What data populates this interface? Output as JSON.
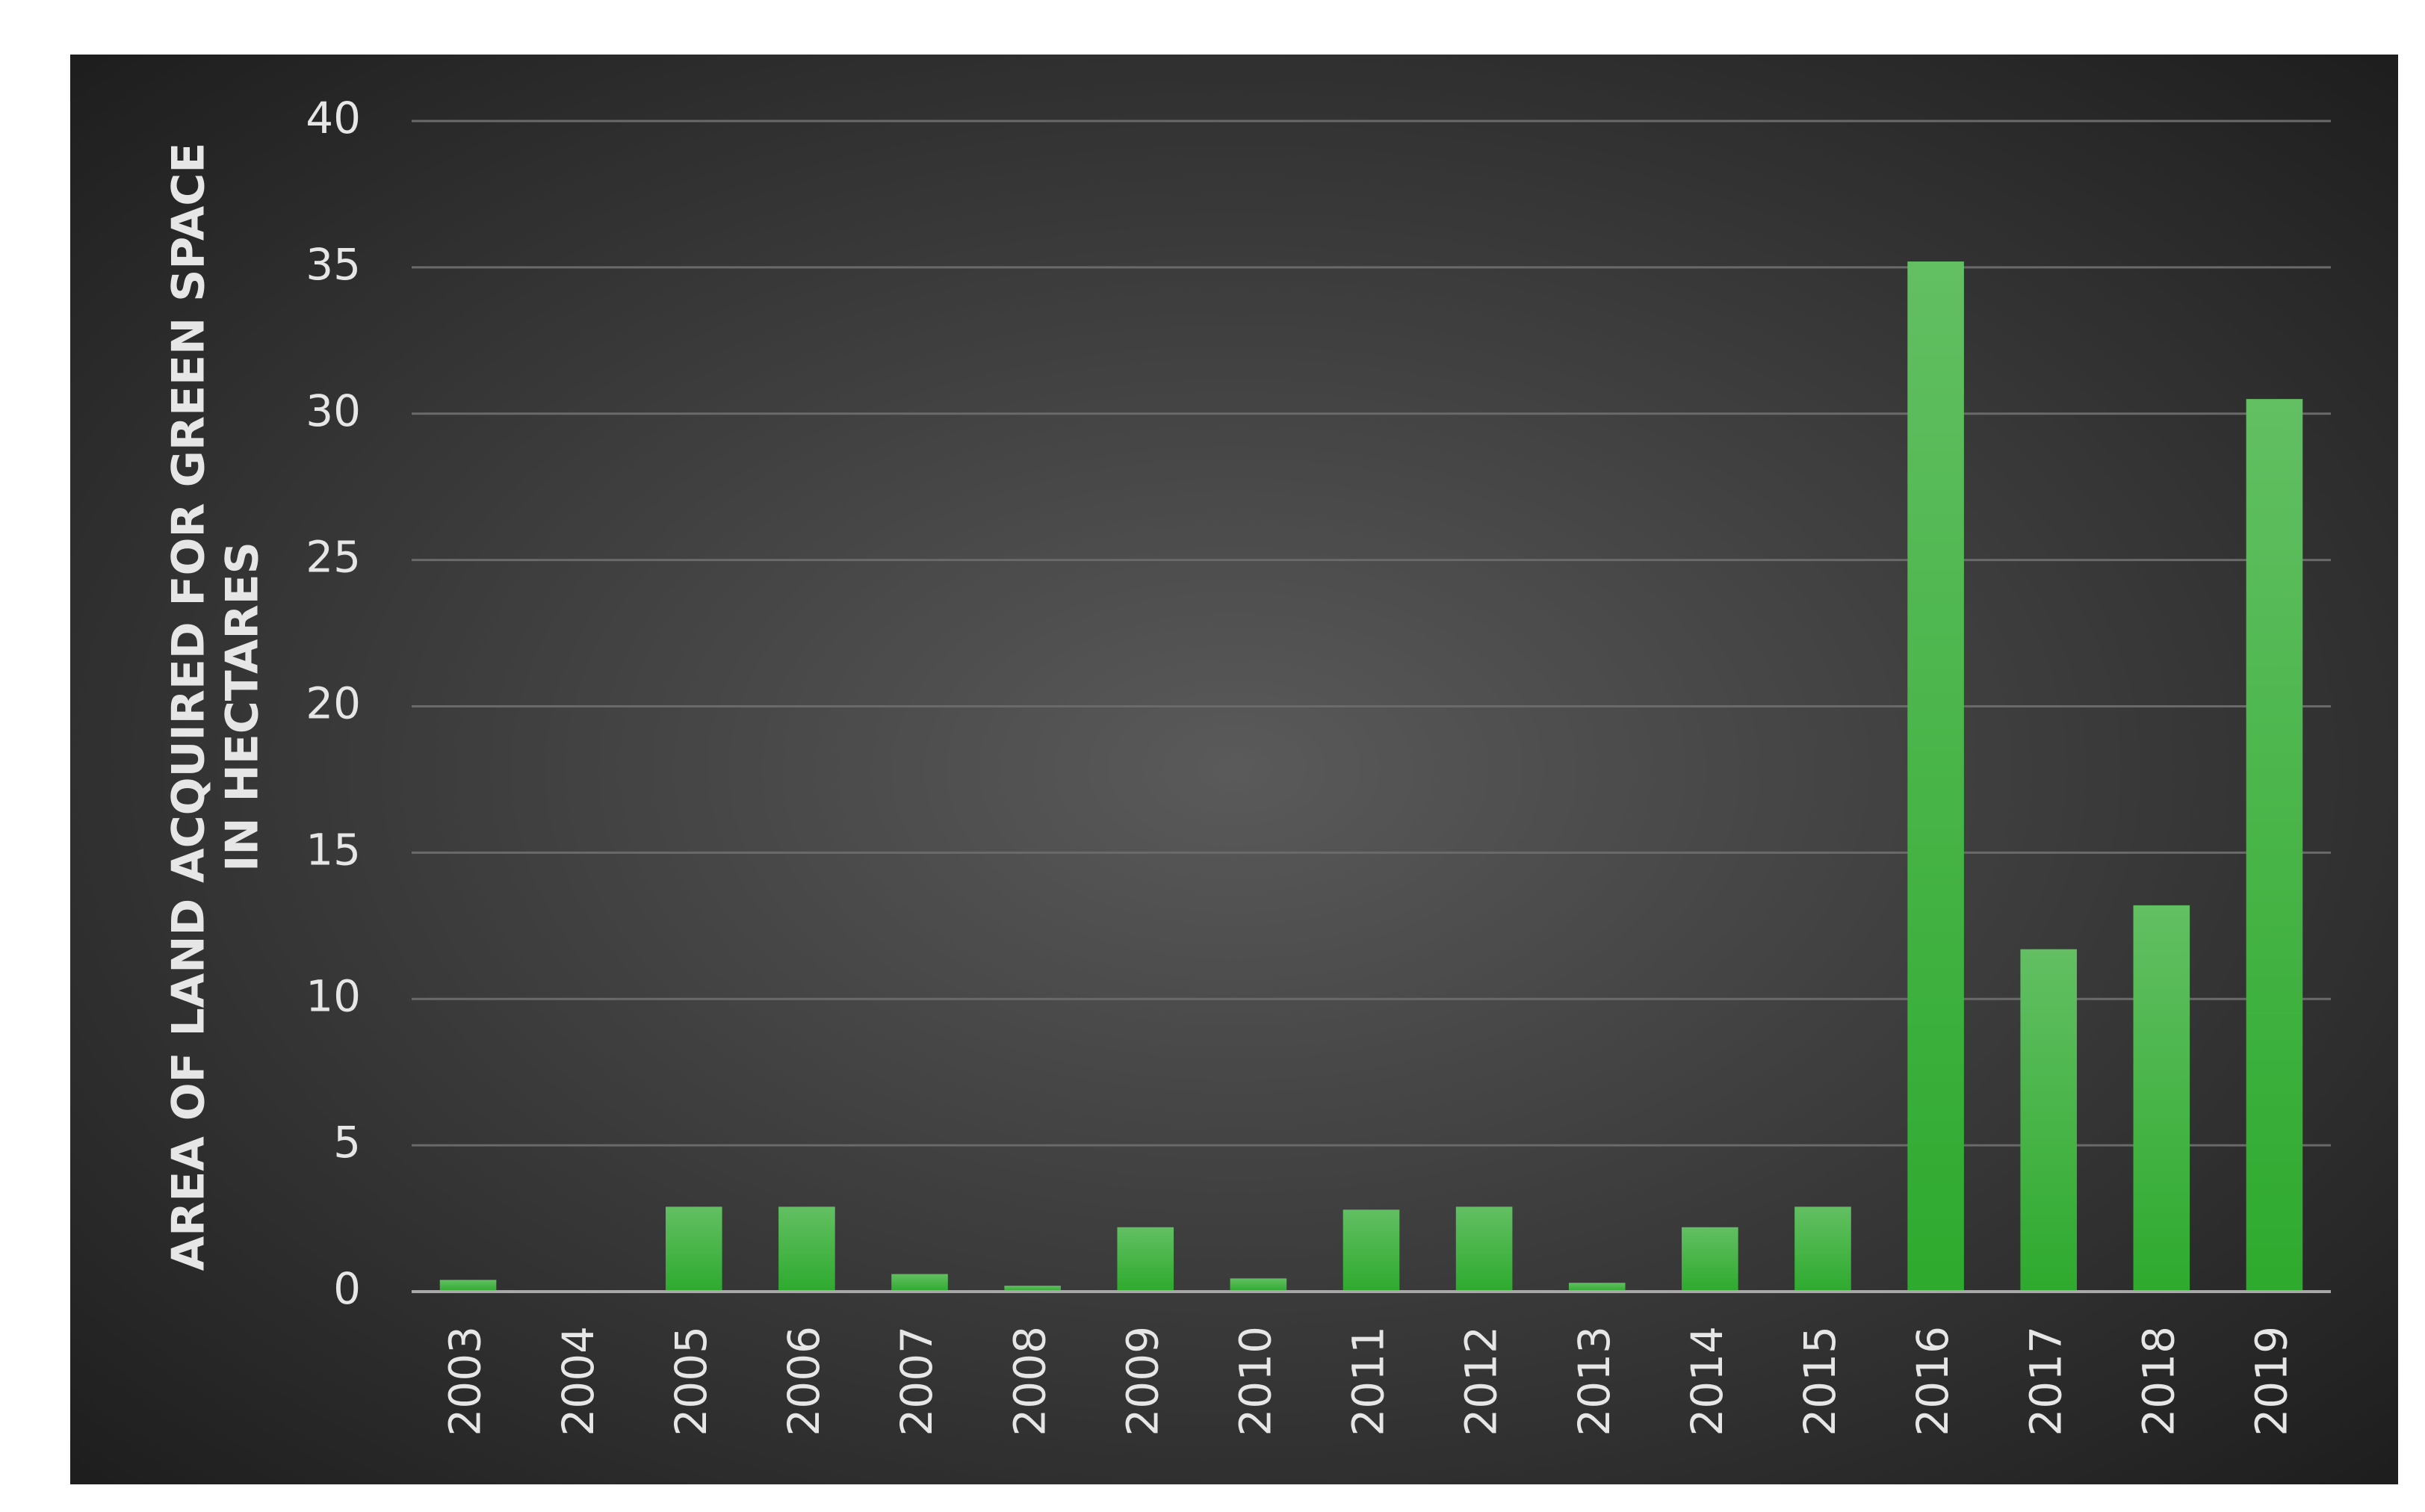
{
  "chart_data": {
    "type": "bar",
    "y_label": [
      "AREA OF LAND ACQUIRED FOR GREEN SPACE",
      "IN HECTARES"
    ],
    "categories": [
      "2003",
      "2004",
      "2005",
      "2006",
      "2007",
      "2008",
      "2009",
      "2010",
      "2011",
      "2012",
      "2013",
      "2014",
      "2015",
      "2016",
      "2017",
      "2018",
      "2019"
    ],
    "values": [
      0.4,
      0.05,
      2.9,
      2.9,
      0.6,
      0.2,
      2.2,
      0.45,
      2.8,
      2.9,
      0.3,
      2.2,
      2.9,
      35.2,
      11.7,
      13.2,
      30.5
    ],
    "color": "#2eaa2e",
    "ylim": [
      0,
      40
    ],
    "yticks": [
      0,
      5,
      10,
      15,
      20,
      25,
      30,
      35,
      40
    ],
    "grid": true
  }
}
